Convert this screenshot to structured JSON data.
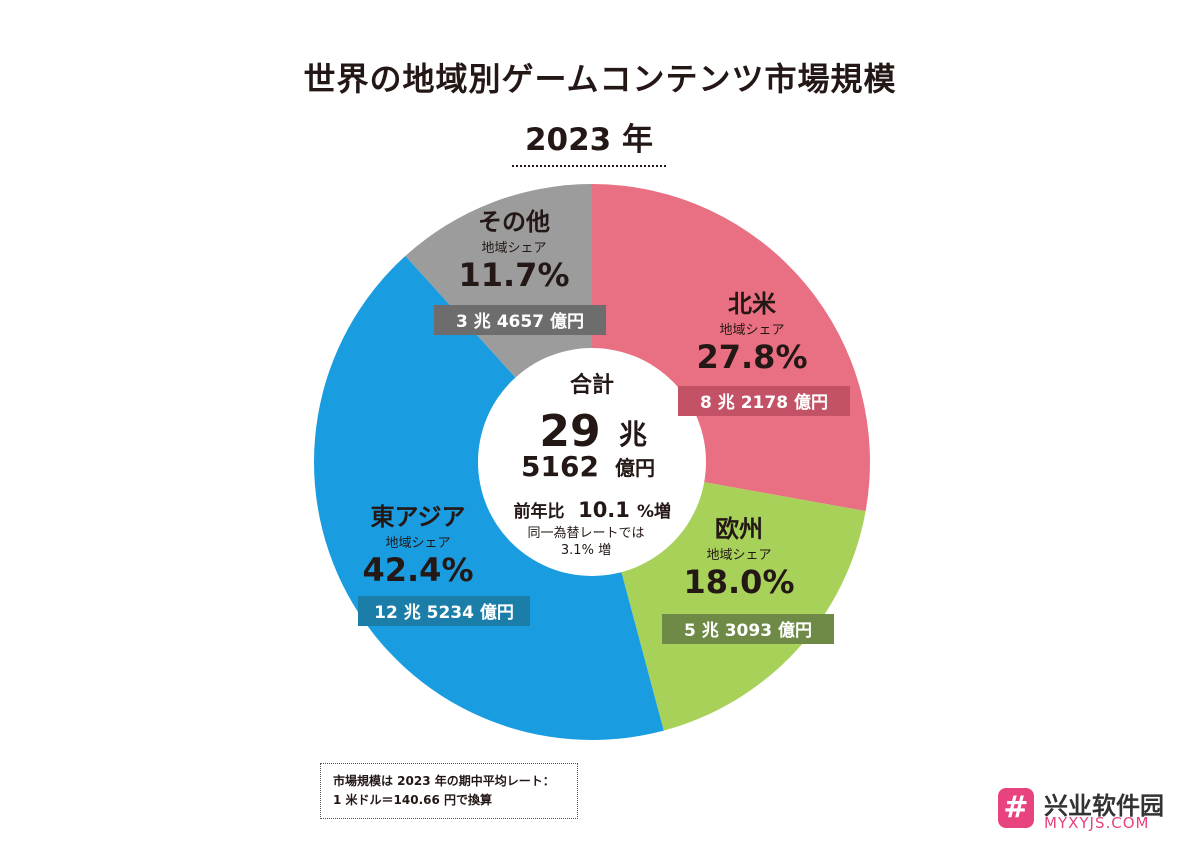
{
  "title": "世界の地域別ゲームコンテンツ市場規模",
  "year": "2023 年",
  "chart_data": {
    "type": "pie",
    "style": "donut",
    "title": "世界の地域別ゲームコンテンツ市場規模",
    "subtitle": "2023 年",
    "share_label": "地域シェア",
    "center": {
      "label": "合計",
      "line1_num": "29",
      "line1_unit": "兆",
      "line2_num": "5162",
      "line2_unit": "億円",
      "yoy_label": "前年比",
      "yoy_value": "10.1",
      "yoy_unit": "%増",
      "note_line1": "同一為替レートでは",
      "note_line2": "3.1% 増"
    },
    "slices": [
      {
        "name": "北米",
        "share": 27.8,
        "share_text": "27.8%",
        "amount": "8 兆 2178 億円",
        "color": "#e96f82",
        "box_color": "#c45266"
      },
      {
        "name": "欧州",
        "share": 18.0,
        "share_text": "18.0%",
        "amount": "5 兆 3093 億円",
        "color": "#a8d15a",
        "box_color": "#6f8a46"
      },
      {
        "name": "東アジア",
        "share": 42.4,
        "share_text": "42.4%",
        "amount": "12 兆 5234 億円",
        "color": "#1a9de0",
        "box_color": "#1b7ea8"
      },
      {
        "name": "その他",
        "share": 11.7,
        "share_text": "11.7%",
        "amount": "3 兆 4657 億円",
        "color": "#9c9c9c",
        "box_color": "#6d6d6d"
      }
    ]
  },
  "note": {
    "line1": "市場規模は 2023 年の期中平均レート：",
    "line2": "1 米ドル＝140.66 円で換算"
  },
  "watermark": {
    "symbol": "#",
    "name": "兴业软件园",
    "url": "MYXYJS.COM"
  }
}
